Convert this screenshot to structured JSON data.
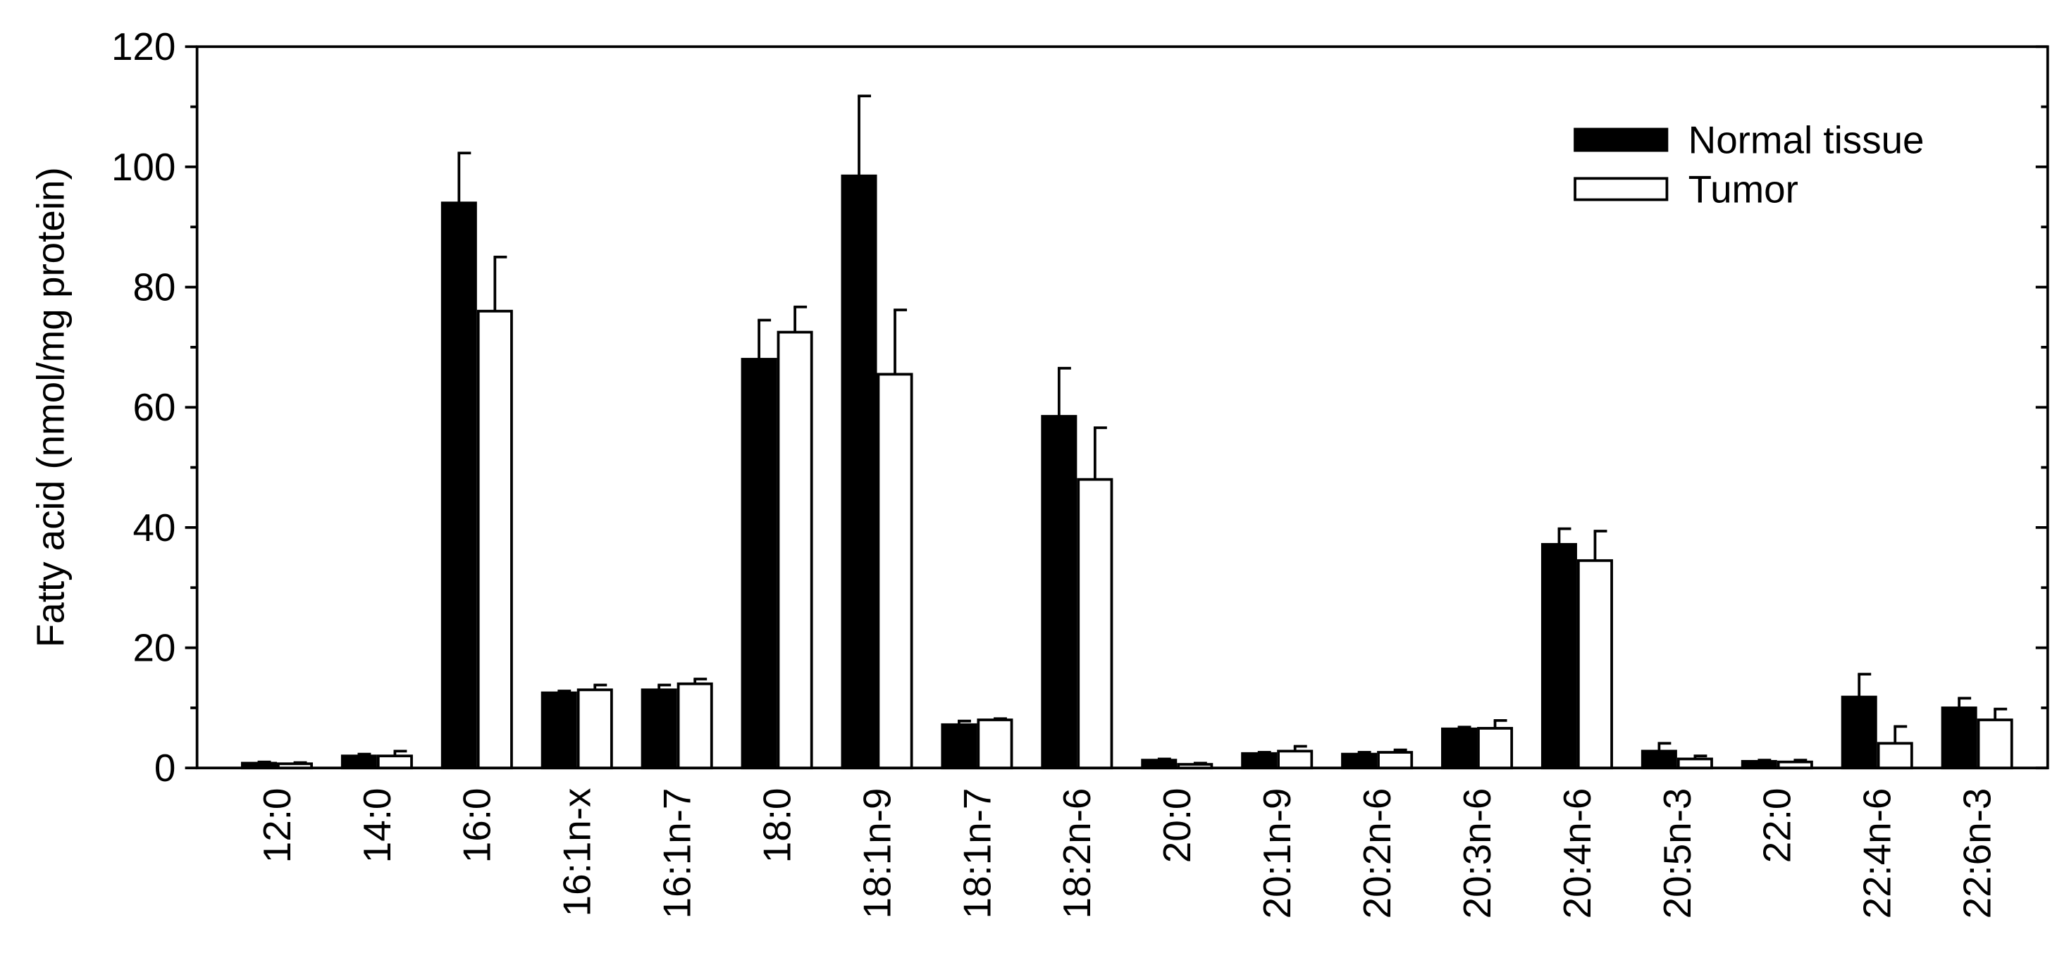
{
  "chart_data": {
    "type": "bar",
    "y_label": "Fatty acid (nmol/mg protein)",
    "categories": [
      "12:0",
      "14:0",
      "16:0",
      "16:1n-x",
      "16:1n-7",
      "18:0",
      "18:1n-9",
      "18:1n-7",
      "18:2n-6",
      "20:0",
      "20:1n-9",
      "20:2n-6",
      "20:3n-6",
      "20:4n-6",
      "20:5n-3",
      "22:0",
      "22:4n-6",
      "22:6n-3"
    ],
    "series": [
      {
        "name": "Normal tissue",
        "color": "#000000",
        "values": [
          0.8,
          2.0,
          94,
          12.5,
          13,
          68,
          98.5,
          7.2,
          58.5,
          1.3,
          2.4,
          2.3,
          6.5,
          37.2,
          2.8,
          1.1,
          11.8,
          10
        ],
        "errors": [
          0.2,
          0.3,
          8.3,
          0.3,
          0.8,
          6.5,
          13.3,
          0.6,
          8,
          0.2,
          0.2,
          0.3,
          0.3,
          2.6,
          1.3,
          0.2,
          3.8,
          1.6
        ]
      },
      {
        "name": "Tumor",
        "color": "#ffffff",
        "values": [
          0.7,
          2.0,
          76,
          13,
          14,
          72.5,
          65.5,
          8,
          48,
          0.6,
          2.8,
          2.6,
          6.6,
          34.5,
          1.5,
          1.0,
          4.1,
          8
        ],
        "errors": [
          0.2,
          0.8,
          9,
          0.8,
          0.8,
          4.2,
          10.7,
          0.2,
          8.6,
          0.2,
          0.8,
          0.4,
          1.3,
          4.9,
          0.5,
          0.3,
          2.8,
          1.8
        ]
      }
    ],
    "ylim": [
      0,
      120
    ],
    "yticks": [
      0,
      20,
      40,
      60,
      80,
      100,
      120
    ],
    "minor_yticks": [
      10,
      30,
      50,
      70,
      90,
      110
    ],
    "legend": "upper right"
  }
}
